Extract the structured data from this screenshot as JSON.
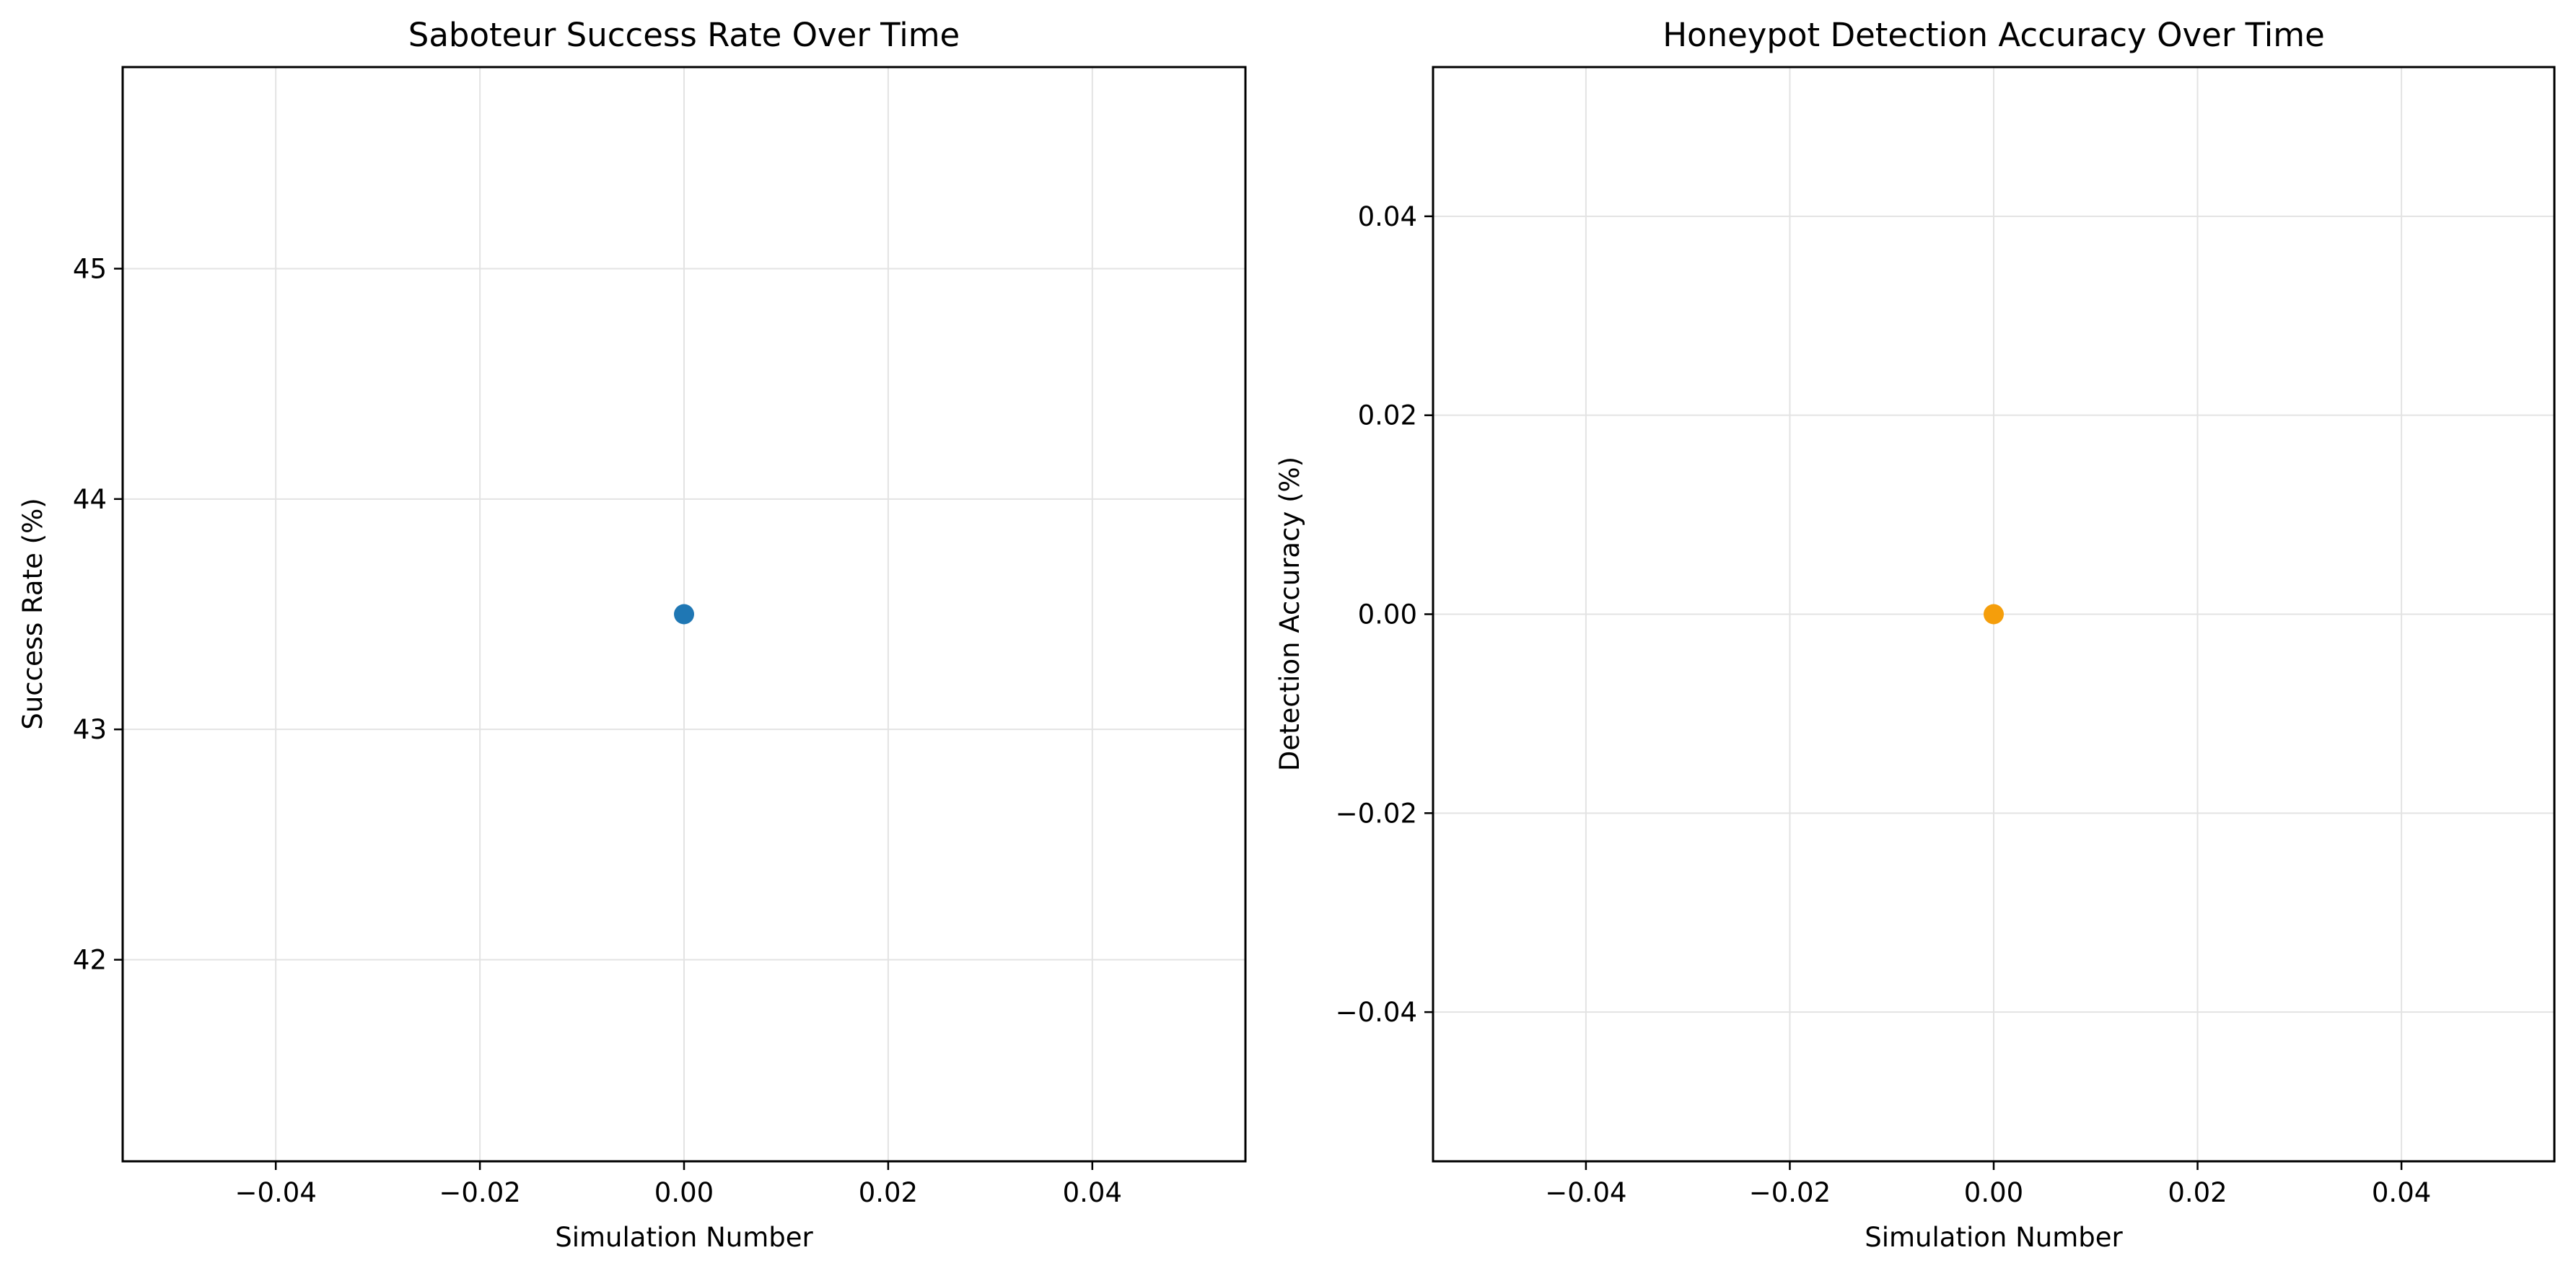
{
  "chart_data": [
    {
      "type": "scatter",
      "title": "Saboteur Success Rate Over Time",
      "xlabel": "Simulation Number",
      "ylabel": "Success Rate (%)",
      "xlim": [
        -0.055,
        0.055
      ],
      "ylim": [
        41.125,
        45.875
      ],
      "x_ticks": [
        -0.04,
        -0.02,
        0.0,
        0.02,
        0.04
      ],
      "x_tick_labels": [
        "−0.04",
        "−0.02",
        "0.00",
        "0.02",
        "0.04"
      ],
      "y_ticks": [
        42,
        43,
        44,
        45
      ],
      "y_tick_labels": [
        "42",
        "43",
        "44",
        "45"
      ],
      "grid": true,
      "series": [
        {
          "color": "#1f77b4",
          "x": [
            0.0
          ],
          "y": [
            43.5
          ]
        }
      ]
    },
    {
      "type": "scatter",
      "title": "Honeypot Detection Accuracy Over Time",
      "xlabel": "Simulation Number",
      "ylabel": "Detection Accuracy (%)",
      "xlim": [
        -0.055,
        0.055
      ],
      "ylim": [
        -0.055,
        0.055
      ],
      "x_ticks": [
        -0.04,
        -0.02,
        0.0,
        0.02,
        0.04
      ],
      "x_tick_labels": [
        "−0.04",
        "−0.02",
        "0.00",
        "0.02",
        "0.04"
      ],
      "y_ticks": [
        -0.04,
        -0.02,
        0.0,
        0.02,
        0.04
      ],
      "y_tick_labels": [
        "−0.04",
        "−0.02",
        "0.00",
        "0.02",
        "0.04"
      ],
      "grid": true,
      "series": [
        {
          "color": "#f59e0b",
          "x": [
            0.0
          ],
          "y": [
            0.0
          ]
        }
      ]
    }
  ]
}
